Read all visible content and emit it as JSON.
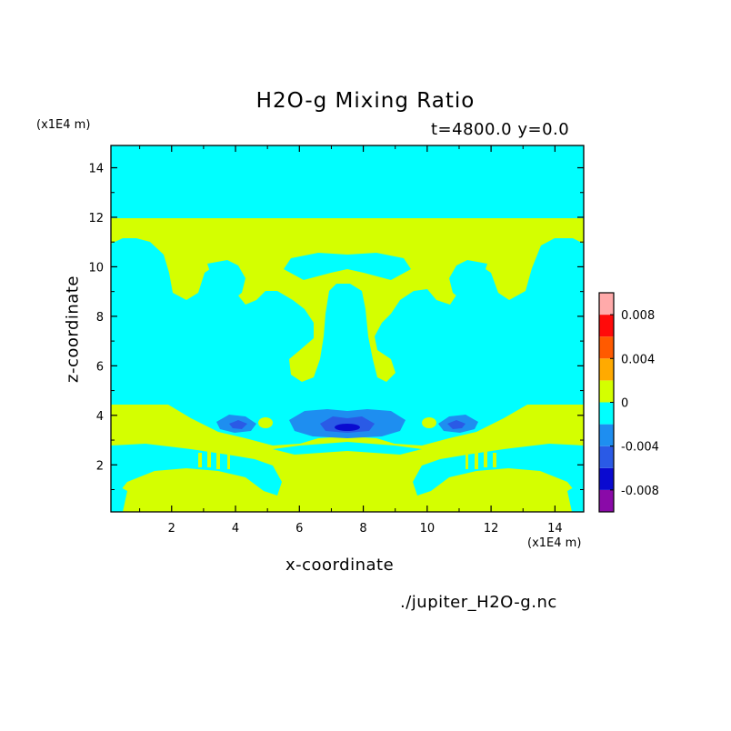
{
  "chart_data": {
    "type": "heatmap",
    "title": "H2O-g Mixing Ratio",
    "subtitle": "t=4800.0 y=0.0",
    "xlabel": "x-coordinate",
    "ylabel": "z-coordinate",
    "x_unit": "(x1E4 m)",
    "y_unit": "(x1E4 m)",
    "xlim": [
      0.1,
      14.9
    ],
    "ylim": [
      0.1,
      14.9
    ],
    "x_ticks": [
      "2",
      "4",
      "6",
      "8",
      "10",
      "12",
      "14"
    ],
    "y_ticks": [
      "2",
      "4",
      "6",
      "8",
      "10",
      "12",
      "14"
    ],
    "x_tick_values": [
      2,
      4,
      6,
      8,
      10,
      12,
      14
    ],
    "y_tick_values": [
      2,
      4,
      6,
      8,
      10,
      12,
      14
    ],
    "colorbar": {
      "levels": [
        -0.01,
        -0.008,
        -0.006,
        -0.004,
        -0.002,
        0,
        0.002,
        0.004,
        0.006,
        0.008,
        0.01
      ],
      "colors": [
        "#8a0aa8",
        "#0a0ad0",
        "#2a5ae6",
        "#1e8ef0",
        "#00ffff",
        "#d4ff00",
        "#ffaa00",
        "#ff5a00",
        "#ff0a0a",
        "#ffaaaa"
      ],
      "tick_labels": [
        "0.008",
        "0.004",
        "0",
        "-0.004",
        "-0.008"
      ],
      "tick_values": [
        0.008,
        0.004,
        0,
        -0.004,
        -0.008
      ]
    },
    "palette": {
      "cyan": "#00ffff",
      "yellow": "#d4ff00",
      "light_blue": "#1e8ef0",
      "mid_blue": "#2a5ae6",
      "dark_blue": "#0a0ad0"
    }
  },
  "footer": {
    "source_file": "./jupiter_H2O-g.nc"
  }
}
